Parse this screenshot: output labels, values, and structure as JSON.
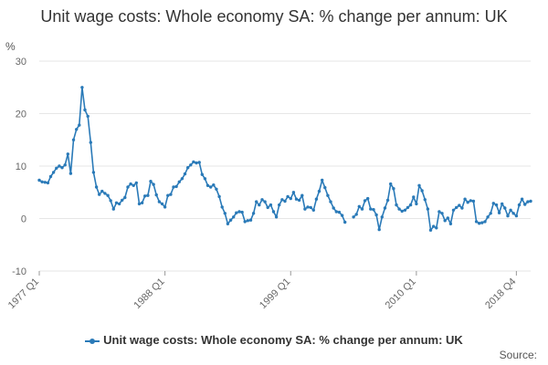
{
  "colors": {
    "series": "#2a7ab8",
    "grid": "#e6e6e6",
    "axis_text": "#666666"
  },
  "chart_data": {
    "type": "line",
    "title": "Unit wage costs: Whole economy SA: % change per annum: UK",
    "unit": "%",
    "xlabel": "",
    "ylabel": "",
    "ylim": [
      -10,
      30
    ],
    "yticks": [
      -10,
      0,
      10,
      20,
      30
    ],
    "x_range": [
      "1977 Q1",
      "2018 Q4"
    ],
    "xticks": [
      "1977 Q1",
      "1988 Q1",
      "1999 Q1",
      "2010 Q1",
      "2018 Q4"
    ],
    "grid": true,
    "legend": "bottom",
    "source_label": "Source:",
    "series": [
      {
        "name": "Unit wage costs: Whole economy SA: % change per annum: UK",
        "values": [
          7.3,
          7.0,
          6.9,
          6.8,
          8.0,
          8.8,
          9.6,
          10.0,
          9.7,
          10.2,
          12.3,
          8.6,
          15.0,
          17.0,
          17.8,
          25.0,
          20.7,
          19.5,
          14.5,
          8.8,
          6.0,
          4.6,
          5.2,
          4.8,
          4.4,
          3.4,
          1.8,
          3.0,
          2.8,
          3.5,
          4.0,
          6.0,
          6.6,
          6.3,
          6.8,
          2.8,
          3.0,
          4.3,
          4.4,
          7.1,
          6.5,
          4.5,
          3.2,
          2.8,
          2.2,
          4.4,
          4.6,
          6.0,
          6.1,
          7.0,
          7.6,
          8.5,
          9.7,
          10.2,
          10.8,
          10.6,
          10.7,
          8.4,
          7.6,
          6.3,
          6.0,
          6.4,
          5.6,
          4.2,
          2.2,
          1.0,
          -1.0,
          -0.3,
          0.3,
          1.1,
          1.3,
          1.2,
          -0.6,
          -0.4,
          -0.3,
          1.0,
          3.2,
          2.6,
          3.6,
          3.2,
          2.1,
          2.6,
          1.3,
          0.3,
          2.6,
          3.6,
          3.3,
          4.2,
          3.8,
          5.0,
          3.7,
          3.5,
          4.4,
          1.8,
          2.2,
          2.1,
          1.6,
          3.7,
          5.2,
          7.3,
          5.9,
          4.4,
          3.2,
          2.0,
          1.3,
          1.2,
          0.6,
          -0.7,
          null,
          null,
          0.3,
          0.8,
          2.3,
          1.8,
          3.4,
          3.8,
          1.8,
          1.7,
          0.7,
          -2.1,
          0.3,
          2.0,
          3.5,
          6.6,
          5.7,
          2.6,
          1.8,
          1.4,
          1.6,
          2.1,
          2.6,
          4.1,
          2.8,
          6.3,
          5.3,
          3.6,
          1.8,
          -2.2,
          -1.5,
          -1.8,
          1.3,
          1.0,
          -0.4,
          0.1,
          -1.0,
          1.6,
          2.1,
          2.5,
          2.0,
          3.7,
          3.1,
          3.4,
          3.3,
          -0.6,
          -0.9,
          -0.8,
          -0.6,
          0.3,
          1.0,
          2.9,
          2.6,
          1.1,
          2.8,
          2.0,
          0.5,
          1.6,
          1.0,
          0.5,
          2.6,
          3.7,
          2.7,
          3.2,
          3.3
        ]
      }
    ]
  }
}
